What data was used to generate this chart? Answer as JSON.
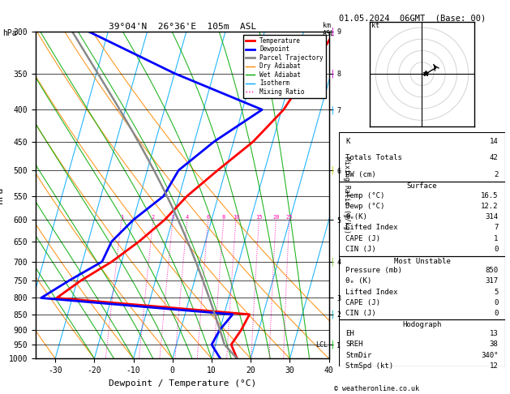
{
  "title_left": "39°04'N  26°36'E  105m  ASL",
  "title_right": "01.05.2024  06GMT  (Base: 00)",
  "xlabel": "Dewpoint / Temperature (°C)",
  "ylabel_left": "hPa",
  "ylabel_right2": "Mixing Ratio (g/kg)",
  "pressure_levels": [
    300,
    350,
    400,
    450,
    500,
    550,
    600,
    650,
    700,
    750,
    800,
    850,
    900,
    950,
    1000
  ],
  "temp_line_color": "#ff0000",
  "dewp_line_color": "#0000ff",
  "parcel_line_color": "#888888",
  "dry_adiabat_color": "#ff8800",
  "wet_adiabat_color": "#00aa00",
  "isotherm_color": "#00aaff",
  "mixing_ratio_color": "#ff00aa",
  "background_color": "#ffffff",
  "temp_data": [
    [
      300,
      18.0
    ],
    [
      350,
      14.0
    ],
    [
      400,
      10.5
    ],
    [
      450,
      5.0
    ],
    [
      500,
      -2.0
    ],
    [
      550,
      -8.0
    ],
    [
      600,
      -12.0
    ],
    [
      650,
      -17.0
    ],
    [
      700,
      -22.5
    ],
    [
      750,
      -29.0
    ],
    [
      800,
      -34.0
    ],
    [
      850,
      16.5
    ],
    [
      900,
      15.5
    ],
    [
      950,
      14.0
    ],
    [
      1000,
      16.5
    ]
  ],
  "dewp_data": [
    [
      300,
      -45.0
    ],
    [
      350,
      -20.0
    ],
    [
      400,
      5.0
    ],
    [
      450,
      -5.0
    ],
    [
      500,
      -12.0
    ],
    [
      550,
      -14.0
    ],
    [
      600,
      -20.0
    ],
    [
      650,
      -24.0
    ],
    [
      700,
      -25.0
    ],
    [
      750,
      -32.0
    ],
    [
      800,
      -38.0
    ],
    [
      850,
      12.2
    ],
    [
      900,
      10.0
    ],
    [
      950,
      9.0
    ],
    [
      1000,
      12.2
    ]
  ],
  "xlim": [
    -35,
    40
  ],
  "ylim_p": [
    1000,
    300
  ],
  "copyright": "© weatheronline.co.uk",
  "stats": {
    "K": 14,
    "Totals Totals": 42,
    "PW (cm)": 2,
    "Surface": {
      "Temp (°C)": 16.5,
      "Dewp (°C)": 12.2,
      "θe(K)": 314,
      "Lifted Index": 7,
      "CAPE (J)": 1,
      "CIN (J)": 0
    },
    "Most Unstable": {
      "Pressure (mb)": 850,
      "θe (K)": 317,
      "Lifted Index": 5,
      "CAPE (J)": 0,
      "CIN (J)": 0
    },
    "Hodograph": {
      "EH": 13,
      "SREH": 38,
      "StmDir": "340°",
      "StmSpd (kt)": 12
    }
  },
  "lcl_pressure": 950,
  "km_ticks_p": [
    300,
    350,
    400,
    500,
    600,
    700,
    800,
    850,
    950
  ],
  "km_vals": [
    9,
    8,
    7,
    6,
    5,
    4,
    3,
    2,
    1
  ]
}
